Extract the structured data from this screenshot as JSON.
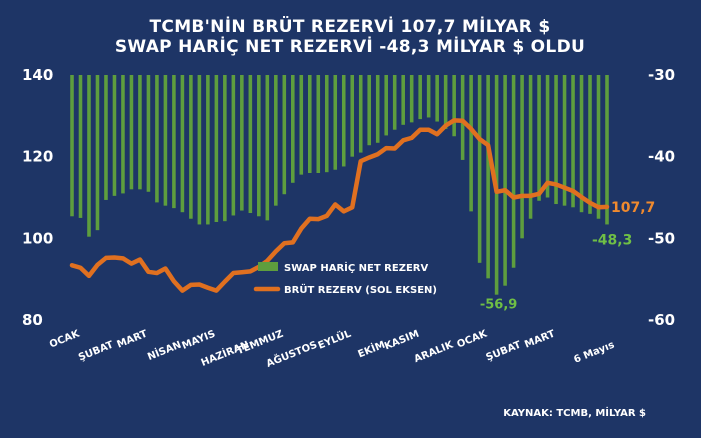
{
  "chart_data": {
    "type": "bar-line",
    "title_lines": [
      "TCMB'NİN BRÜT REZERVİ 107,7 MİLYAR $",
      "SWAP HARİÇ NET REZERVİ -48,3 MİLYAR $ OLDU"
    ],
    "source": "KAYNAK: TCMB, MİLYAR $",
    "left_axis": {
      "min": 80,
      "max": 140,
      "ticks": [
        "140",
        "120",
        "100",
        "80"
      ],
      "tick_values": [
        140,
        120,
        100,
        80
      ]
    },
    "right_axis": {
      "min": -60,
      "max": -30,
      "ticks": [
        "-30",
        "-40",
        "-50",
        "-60"
      ],
      "tick_values": [
        -30,
        -40,
        -50,
        -60
      ]
    },
    "x_labels": [
      "OCAK",
      "ŞUBAT",
      "MART",
      "NİSAN",
      "MAYIS",
      "HAZİRAN",
      "TEMMUZ",
      "AĞUSTOS",
      "EYLÜL",
      "EKİM",
      "KASIM",
      "ARALIK",
      "OCAK",
      "ŞUBAT",
      "MART",
      "6 Mayıs"
    ],
    "x_label_positions": [
      0,
      4,
      8,
      12,
      16,
      20,
      24,
      28,
      32,
      36,
      40,
      44,
      48,
      52,
      56,
      63
    ],
    "series": [
      {
        "name": "SWAP HARİÇ NET REZERV",
        "type": "bar",
        "axis": "right",
        "color": "#5e9e3e",
        "values": [
          -47.3,
          -47.5,
          -49.8,
          -49.0,
          -45.3,
          -44.8,
          -44.5,
          -44.0,
          -44.0,
          -44.3,
          -45.6,
          -46.0,
          -46.3,
          -46.8,
          -47.6,
          -48.3,
          -48.3,
          -48.0,
          -47.9,
          -47.2,
          -46.6,
          -46.9,
          -47.3,
          -47.8,
          -46.0,
          -44.6,
          -43.2,
          -42.2,
          -42.0,
          -42.0,
          -41.9,
          -41.6,
          -41.2,
          -40.0,
          -39.5,
          -38.6,
          -38.3,
          -37.4,
          -36.7,
          -36.1,
          -35.8,
          -35.4,
          -35.2,
          -35.7,
          -36.6,
          -37.5,
          -40.4,
          -46.7,
          -53.0,
          -54.9,
          -56.9,
          -55.8,
          -53.6,
          -50.0,
          -47.6,
          -45.4,
          -45.0,
          -45.8,
          -46.0,
          -46.2,
          -46.8,
          -47.0,
          -47.6,
          -48.3
        ],
        "end_label": "-48,3"
      },
      {
        "name": "BRÜT REZERV (SOL EKSEN)",
        "type": "line",
        "axis": "left",
        "color": "#e07020",
        "values": [
          93.4,
          92.8,
          90.8,
          93.5,
          95.2,
          95.3,
          95.1,
          93.8,
          94.8,
          91.8,
          91.5,
          92.6,
          89.5,
          87.2,
          88.6,
          88.7,
          87.9,
          87.2,
          89.4,
          91.5,
          91.7,
          91.9,
          93.0,
          94.5,
          96.8,
          98.8,
          99.0,
          102.4,
          104.8,
          104.7,
          105.5,
          108.3,
          106.6,
          107.6,
          118.9,
          119.8,
          120.6,
          122.1,
          122.0,
          124.0,
          124.6,
          126.6,
          126.6,
          125.5,
          127.6,
          128.9,
          128.8,
          126.8,
          124.3,
          122.8,
          111.4,
          111.8,
          110.0,
          110.4,
          110.4,
          110.9,
          113.6,
          113.2,
          112.4,
          111.6,
          110.1,
          108.7,
          107.6,
          107.7
        ],
        "end_label": "107,7"
      }
    ],
    "annotations": [
      {
        "text": "-56,9",
        "series": "SWAP HARİÇ NET REZERV",
        "index": 50
      }
    ],
    "grid": false,
    "legend_position": "center"
  }
}
